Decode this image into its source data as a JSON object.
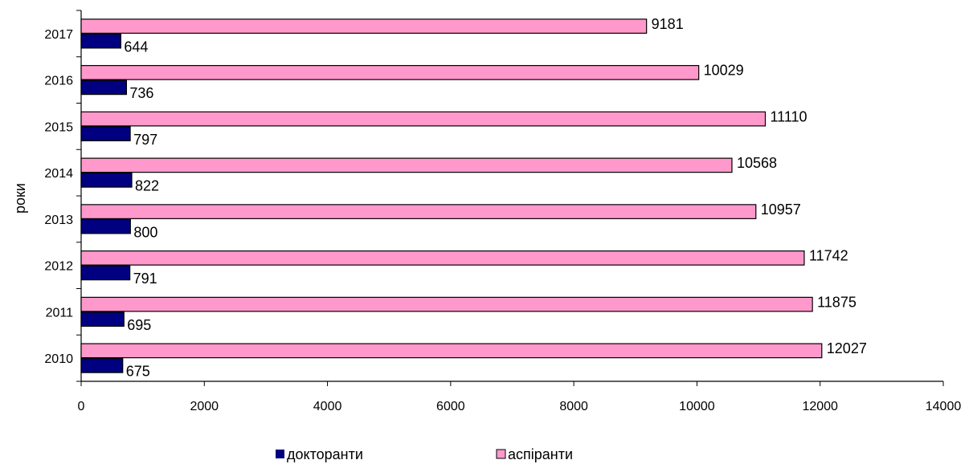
{
  "chart_data": {
    "type": "bar",
    "orientation": "horizontal",
    "categories": [
      "2010",
      "2011",
      "2012",
      "2013",
      "2014",
      "2015",
      "2016",
      "2017"
    ],
    "series": [
      {
        "name": "докторанти",
        "values": [
          675,
          695,
          791,
          800,
          822,
          797,
          736,
          644
        ],
        "color": "#000080"
      },
      {
        "name": "аспіранти",
        "values": [
          12027,
          11875,
          11742,
          10957,
          10568,
          11110,
          10029,
          9181
        ],
        "color": "#ff99cc"
      }
    ],
    "x_ticks": [
      "0",
      "2000",
      "4000",
      "6000",
      "8000",
      "10000",
      "12000",
      "14000"
    ],
    "xlim": [
      0,
      14000
    ],
    "xlabel": "",
    "ylabel": "роки",
    "grid": false,
    "legend": "bottom"
  }
}
